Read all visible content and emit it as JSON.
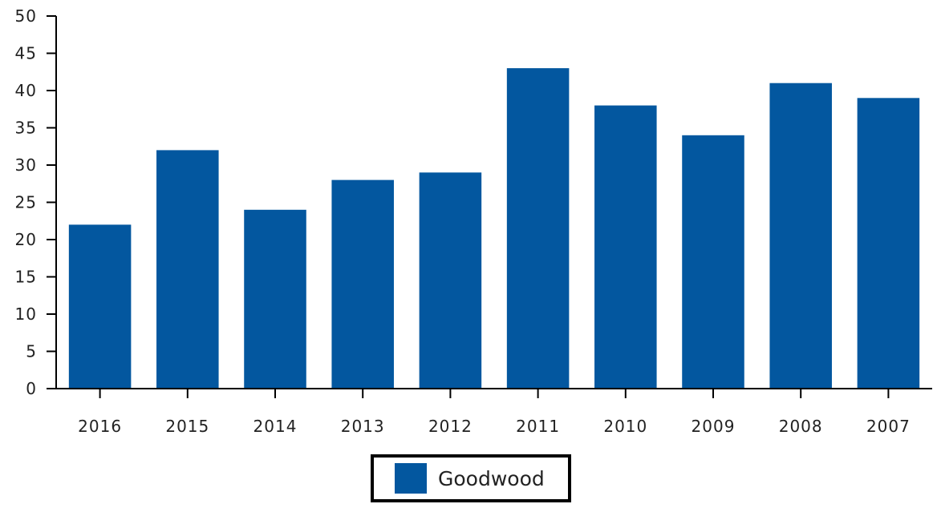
{
  "chart_data": {
    "type": "bar",
    "categories": [
      "2016",
      "2015",
      "2014",
      "2013",
      "2012",
      "2011",
      "2010",
      "2009",
      "2008",
      "2007"
    ],
    "series": [
      {
        "name": "Goodwood",
        "values": [
          22,
          32,
          24,
          28,
          29,
          43,
          38,
          34,
          41,
          39
        ]
      }
    ],
    "ylim": [
      0,
      50
    ],
    "yticks": [
      0,
      5,
      10,
      15,
      20,
      25,
      30,
      35,
      40,
      45,
      50
    ],
    "grid": false,
    "legend_position": "bottom-center",
    "bar_color": "#03579f",
    "title": "",
    "xlabel": "",
    "ylabel": ""
  },
  "legend": {
    "label": "Goodwood",
    "color": "#03579f"
  }
}
